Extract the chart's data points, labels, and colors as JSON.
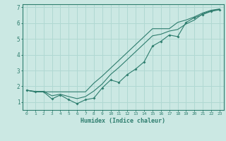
{
  "xlabel": "Humidex (Indice chaleur)",
  "bg_color": "#cbe8e3",
  "grid_color": "#b0d8d2",
  "line_color": "#2e7d6e",
  "xlim": [
    -0.5,
    23.5
  ],
  "ylim": [
    0.5,
    7.2
  ],
  "xticks": [
    0,
    1,
    2,
    3,
    4,
    5,
    6,
    7,
    8,
    9,
    10,
    11,
    12,
    13,
    14,
    15,
    16,
    17,
    18,
    19,
    20,
    21,
    22,
    23
  ],
  "yticks": [
    1,
    2,
    3,
    4,
    5,
    6,
    7
  ],
  "line1_x": [
    0,
    1,
    2,
    3,
    4,
    5,
    6,
    7,
    8,
    9,
    10,
    11,
    12,
    13,
    14,
    15,
    16,
    17,
    18,
    19,
    20,
    21,
    22,
    23
  ],
  "line1_y": [
    1.75,
    1.65,
    1.65,
    1.2,
    1.45,
    1.15,
    0.9,
    1.15,
    1.25,
    1.9,
    2.4,
    2.25,
    2.75,
    3.1,
    3.55,
    4.55,
    4.85,
    5.25,
    5.15,
    6.05,
    6.35,
    6.55,
    6.75,
    6.85
  ],
  "line2_x": [
    0,
    1,
    2,
    3,
    4,
    5,
    6,
    7,
    8,
    9,
    10,
    11,
    12,
    13,
    14,
    15,
    16,
    17,
    18,
    19,
    20,
    21,
    22,
    23
  ],
  "line2_y": [
    1.75,
    1.65,
    1.65,
    1.65,
    1.65,
    1.65,
    1.65,
    1.65,
    2.2,
    2.65,
    3.15,
    3.65,
    4.15,
    4.65,
    5.15,
    5.65,
    5.65,
    5.65,
    6.05,
    6.2,
    6.4,
    6.65,
    6.82,
    6.9
  ],
  "line3_x": [
    0,
    1,
    2,
    3,
    4,
    5,
    6,
    7,
    8,
    9,
    10,
    11,
    12,
    13,
    14,
    15,
    16,
    17,
    18,
    19,
    20,
    21,
    22,
    23
  ],
  "line3_y": [
    1.75,
    1.68,
    1.68,
    1.4,
    1.5,
    1.35,
    1.22,
    1.35,
    1.7,
    2.15,
    2.75,
    3.2,
    3.7,
    4.2,
    4.7,
    5.2,
    5.3,
    5.5,
    5.6,
    5.95,
    6.2,
    6.6,
    6.78,
    6.88
  ]
}
